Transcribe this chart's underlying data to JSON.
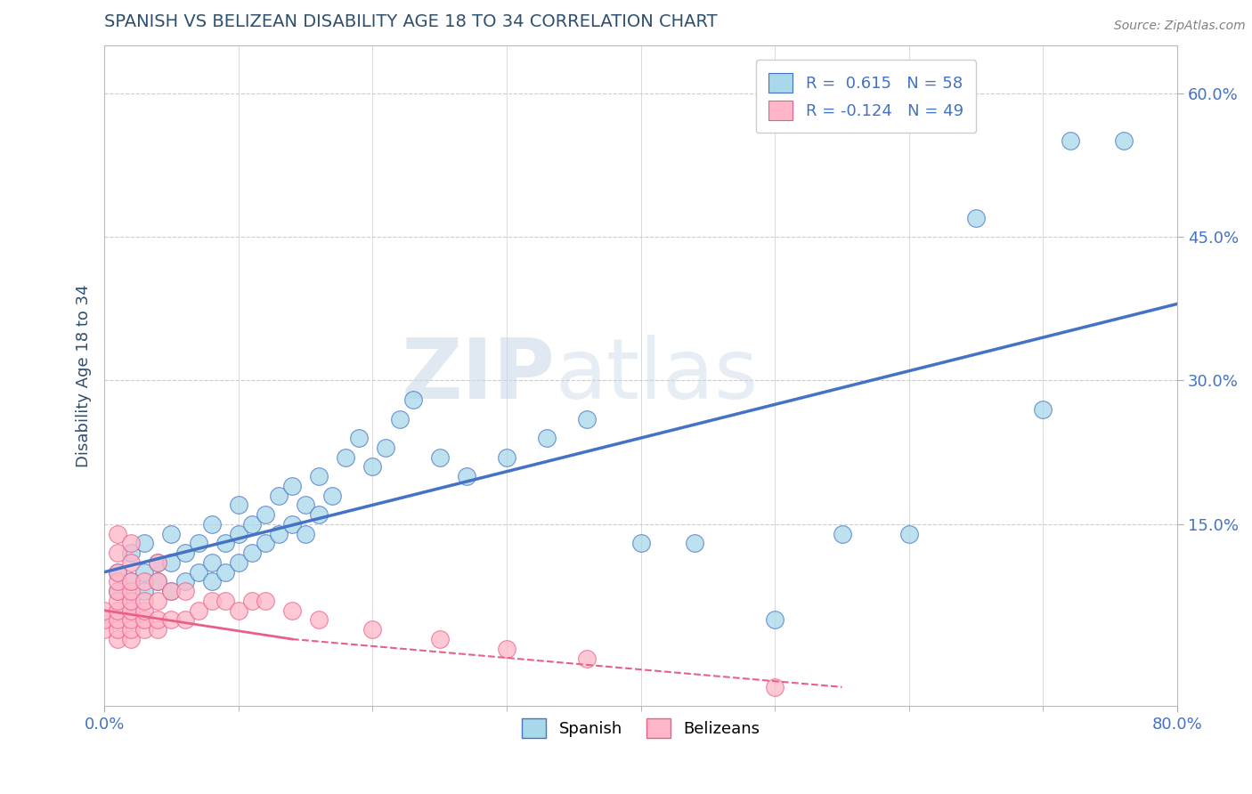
{
  "title": "SPANISH VS BELIZEAN DISABILITY AGE 18 TO 34 CORRELATION CHART",
  "source": "Source: ZipAtlas.com",
  "xlim": [
    0.0,
    0.8
  ],
  "ylim": [
    -0.04,
    0.65
  ],
  "ylabel": "Disability Age 18 to 34",
  "watermark_zip": "ZIP",
  "watermark_atlas": "atlas",
  "color_spanish": "#A8D8EA",
  "color_belizean": "#FFB6C8",
  "color_line_spanish": "#4472C4",
  "color_line_belizean": "#E8608A",
  "background_color": "#FFFFFF",
  "grid_color": "#CCCCCC",
  "title_color": "#2F4F6F",
  "axis_label_color": "#4472C4",
  "spanish_x": [
    0.01,
    0.01,
    0.02,
    0.02,
    0.02,
    0.03,
    0.03,
    0.03,
    0.04,
    0.04,
    0.05,
    0.05,
    0.05,
    0.06,
    0.06,
    0.07,
    0.07,
    0.08,
    0.08,
    0.08,
    0.09,
    0.09,
    0.1,
    0.1,
    0.1,
    0.11,
    0.11,
    0.12,
    0.12,
    0.13,
    0.13,
    0.14,
    0.14,
    0.15,
    0.15,
    0.16,
    0.16,
    0.17,
    0.18,
    0.19,
    0.2,
    0.21,
    0.22,
    0.23,
    0.25,
    0.27,
    0.3,
    0.33,
    0.36,
    0.4,
    0.44,
    0.5,
    0.55,
    0.6,
    0.65,
    0.7,
    0.72,
    0.76
  ],
  "spanish_y": [
    0.08,
    0.1,
    0.07,
    0.09,
    0.12,
    0.08,
    0.1,
    0.13,
    0.09,
    0.11,
    0.08,
    0.11,
    0.14,
    0.09,
    0.12,
    0.1,
    0.13,
    0.09,
    0.11,
    0.15,
    0.1,
    0.13,
    0.11,
    0.14,
    0.17,
    0.12,
    0.15,
    0.13,
    0.16,
    0.14,
    0.18,
    0.15,
    0.19,
    0.14,
    0.17,
    0.16,
    0.2,
    0.18,
    0.22,
    0.24,
    0.21,
    0.23,
    0.26,
    0.28,
    0.22,
    0.2,
    0.22,
    0.24,
    0.26,
    0.13,
    0.13,
    0.05,
    0.14,
    0.14,
    0.47,
    0.27,
    0.55,
    0.55
  ],
  "belizean_x": [
    0.0,
    0.0,
    0.0,
    0.01,
    0.01,
    0.01,
    0.01,
    0.01,
    0.01,
    0.01,
    0.01,
    0.01,
    0.01,
    0.02,
    0.02,
    0.02,
    0.02,
    0.02,
    0.02,
    0.02,
    0.02,
    0.02,
    0.03,
    0.03,
    0.03,
    0.03,
    0.03,
    0.04,
    0.04,
    0.04,
    0.04,
    0.04,
    0.05,
    0.05,
    0.06,
    0.06,
    0.07,
    0.08,
    0.09,
    0.1,
    0.11,
    0.12,
    0.14,
    0.16,
    0.2,
    0.25,
    0.3,
    0.36,
    0.5
  ],
  "belizean_y": [
    0.04,
    0.05,
    0.06,
    0.03,
    0.04,
    0.05,
    0.06,
    0.07,
    0.08,
    0.09,
    0.1,
    0.12,
    0.14,
    0.03,
    0.04,
    0.05,
    0.06,
    0.07,
    0.08,
    0.09,
    0.11,
    0.13,
    0.04,
    0.05,
    0.06,
    0.07,
    0.09,
    0.04,
    0.05,
    0.07,
    0.09,
    0.11,
    0.05,
    0.08,
    0.05,
    0.08,
    0.06,
    0.07,
    0.07,
    0.06,
    0.07,
    0.07,
    0.06,
    0.05,
    0.04,
    0.03,
    0.02,
    0.01,
    -0.02
  ]
}
